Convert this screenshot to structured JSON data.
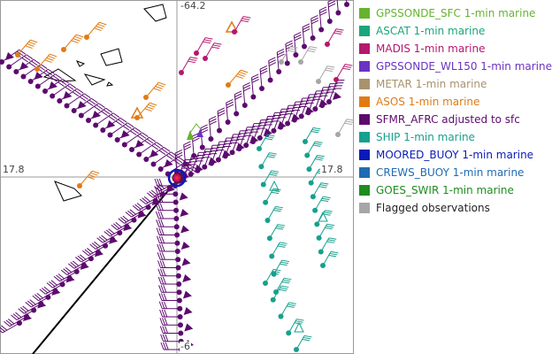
{
  "axis_labels": {
    "top_lat": "-64.2",
    "left_lon": "17.8",
    "right_lon": "17.8",
    "bottom_lat": "-6"
  },
  "legend": {
    "items": [
      {
        "label": "GPSSONDE_SFC 1-min marine",
        "color": "#66b32e"
      },
      {
        "label": "ASCAT 1-min marine",
        "color": "#1aa67a"
      },
      {
        "label": "MADIS 1-min marine",
        "color": "#b5176f"
      },
      {
        "label": "GPSSONDE_WL150 1-min marine",
        "color": "#6b33c2"
      },
      {
        "label": "METAR 1-min marine",
        "color": "#a8936b"
      },
      {
        "label": "ASOS 1-min marine",
        "color": "#e07b14"
      },
      {
        "label": "SFMR_AFRC adjusted to sfc",
        "color": "#5c0a6e"
      },
      {
        "label": "SHIP 1-min marine",
        "color": "#17a08e"
      },
      {
        "label": "MOORED_BUOY 1-min marine",
        "color": "#0a1ab8"
      },
      {
        "label": "CREWS_BUOY 1-min marine",
        "color": "#1f6bb5"
      },
      {
        "label": "GOES_SWIR 1-min marine",
        "color": "#1e8c1e"
      },
      {
        "label": "Flagged observations",
        "color": "#a6a6a6"
      }
    ]
  }
}
